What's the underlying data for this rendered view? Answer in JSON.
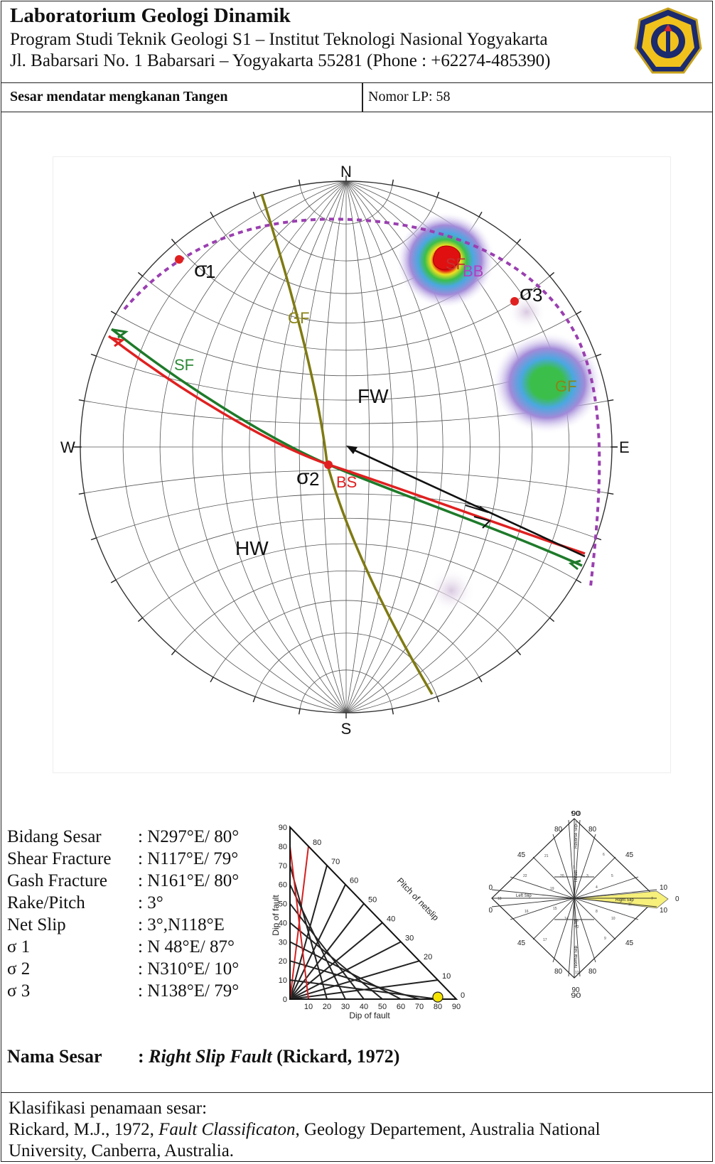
{
  "header": {
    "lab_name": "Laboratorium Geologi Dinamik",
    "program": "Program Studi Teknik Geologi S1 – Institut Teknologi Nasional Yogyakarta",
    "address": "Jl. Babarsari No. 1 Babarsari – Yogyakarta 55281 (Phone : +62274-485390)",
    "fault_title": "Sesar mendatar mengkanan Tangen",
    "lp_number": "Nomor LP: 58"
  },
  "stereonet": {
    "directions": {
      "north": "N",
      "south": "S",
      "west": "W",
      "east": "E"
    },
    "labels": {
      "gf_plane": "GF",
      "sf_plane": "SF",
      "footwall": "FW",
      "hanging_wall": "HW",
      "sigma1": "1",
      "sigma2": "2",
      "sigma3": "3",
      "bs": "BS",
      "sf_pole": "SF",
      "bb": "BB",
      "gf_pole": "GF"
    },
    "colors": {
      "fault_plane": "#e02020",
      "shear_fracture": "#1e7a2a",
      "gash_fracture": "#7f7a12",
      "sigma3_girdle": "#9a3fb0",
      "net_slip": "#111111"
    }
  },
  "parameters": [
    {
      "label": "Bidang Sesar",
      "value": ": N297°E/ 80°"
    },
    {
      "label": "Shear Fracture",
      "value": ": N117°E/ 79°"
    },
    {
      "label": "Gash Fracture",
      "value": ": N161°E/ 80°"
    },
    {
      "label": "Rake/Pitch",
      "value": ": 3°"
    },
    {
      "label": "Net Slip",
      "value": ": 3°,N118°E"
    },
    {
      "label": "σ 1",
      "value": ": N 48°E/ 87°"
    },
    {
      "label": "σ 2",
      "value": ": N310°E/ 10°"
    },
    {
      "label": "σ 3",
      "value": ": N138°E/ 79°"
    }
  ],
  "triangle_diagram": {
    "y_axis_label": "Dip of fault",
    "x_axis_label": "Dip of fault",
    "hyp_label": "Pitch of netslip",
    "y_ticks": [
      "90",
      "80",
      "70",
      "60",
      "50",
      "40",
      "30",
      "20",
      "10",
      "0"
    ],
    "x_ticks": [
      "10",
      "20",
      "30",
      "40",
      "50",
      "60",
      "70",
      "80",
      "90"
    ],
    "ray_labels": [
      "80",
      "70",
      "60",
      "50",
      "40",
      "30",
      "20",
      "10",
      "0"
    ],
    "point": {
      "dip_of_fault": 80,
      "pitch_of_netslip": 3
    },
    "point_color": "#f5e400"
  },
  "classification_diagram": {
    "top": "90",
    "bottom": "90",
    "left": "0",
    "right": "0",
    "upper_left": "80",
    "upper_right": "80",
    "lower_left": "80",
    "lower_right": "80",
    "mid_left_upper": "45",
    "mid_right_upper": "45",
    "mid_left_lower": "45",
    "mid_right_lower": "45",
    "left_upper": "10",
    "left_lower": "10",
    "right_upper": "10",
    "right_lower": "10",
    "reverse_slip": "Reverse Slip",
    "normal_slip": "Normal Slip",
    "thrust": "Thrust",
    "lag": "Lag",
    "left_slip": "Left Slip",
    "right_slip": "Right Slip",
    "cells": [
      "1",
      "2",
      "3",
      "4",
      "5",
      "6",
      "7",
      "8",
      "9",
      "10",
      "11",
      "12",
      "13",
      "14",
      "15",
      "16",
      "17",
      "18",
      "19",
      "20",
      "21",
      "22"
    ],
    "highlight_color": "#f7f07a"
  },
  "result": {
    "label": "Nama Sesar",
    "name_italic": "Right Slip Fault",
    "reference": " (Rickard, 1972)"
  },
  "footer": {
    "heading": "Klasifikasi penamaan sesar:",
    "ref_author": "Rickard, M.J., 1972, ",
    "ref_title": "Fault Classificaton",
    "ref_rest": ", Geology Departement, Australia National",
    "ref_line2": "University, Canberra, Australia."
  }
}
